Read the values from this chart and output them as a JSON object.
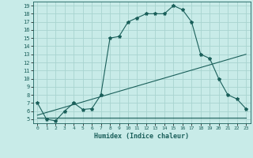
{
  "xlabel": "Humidex (Indice chaleur)",
  "bg_color": "#c8ebe8",
  "grid_color": "#a8d4d0",
  "line_color": "#1a5f5a",
  "xlim": [
    -0.5,
    23.5
  ],
  "ylim": [
    4.5,
    19.5
  ],
  "xticks": [
    0,
    1,
    2,
    3,
    4,
    5,
    6,
    7,
    8,
    9,
    10,
    11,
    12,
    13,
    14,
    15,
    16,
    17,
    18,
    19,
    20,
    21,
    22,
    23
  ],
  "yticks": [
    5,
    6,
    7,
    8,
    9,
    10,
    11,
    12,
    13,
    14,
    15,
    16,
    17,
    18,
    19
  ],
  "main_x": [
    0,
    1,
    2,
    3,
    4,
    5,
    6,
    7,
    8,
    9,
    10,
    11,
    12,
    13,
    14,
    15,
    16,
    17,
    18,
    19,
    20,
    21,
    22,
    23
  ],
  "main_y": [
    7,
    5,
    4.8,
    6,
    7,
    6.2,
    6.3,
    8,
    15,
    15.2,
    17,
    17.5,
    18,
    18,
    18,
    19,
    18.5,
    17,
    13,
    12.5,
    10,
    8,
    7.5,
    6.3
  ],
  "line2_x": [
    0,
    23
  ],
  "line2_y": [
    5.5,
    13
  ],
  "line3_x": [
    0,
    23
  ],
  "line3_y": [
    5.2,
    5.2
  ]
}
